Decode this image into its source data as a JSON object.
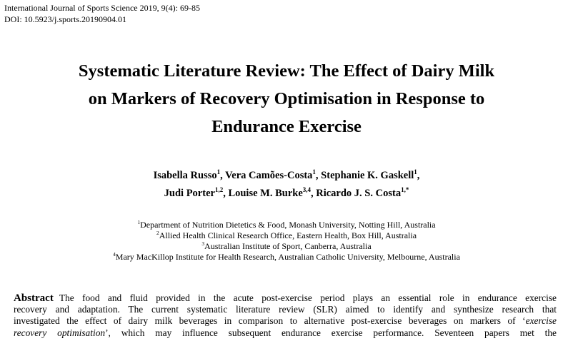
{
  "journal": {
    "citation": "International Journal of Sports Science 2019, 9(4): 69-85",
    "doi": "DOI: 10.5923/j.sports.20190904.01"
  },
  "title": {
    "line1": "Systematic Literature Review: The Effect of Dairy Milk",
    "line2": "on Markers of Recovery Optimisation in Response to",
    "line3": "Endurance Exercise"
  },
  "authors": {
    "a1": {
      "name": "Isabella Russo",
      "sup": "1"
    },
    "a2": {
      "name": "Vera Camões-Costa",
      "sup": "1"
    },
    "a3": {
      "name": "Stephanie K. Gaskell",
      "sup": "1"
    },
    "a4": {
      "name": "Judi Porter",
      "sup": "1,2"
    },
    "a5": {
      "name": "Louise M. Burke",
      "sup": "3,4"
    },
    "a6": {
      "name": "Ricardo J. S. Costa",
      "sup": "1,*"
    },
    "sep": ", "
  },
  "affiliations": [
    {
      "num": "1",
      "text": "Department of Nutrition Dietetics & Food, Monash University, Notting Hill, Australia"
    },
    {
      "num": "2",
      "text": "Allied Health Clinical Research Office, Eastern Health, Box Hill, Australia"
    },
    {
      "num": "3",
      "text": "Australian Institute of Sport, Canberra, Australia"
    },
    {
      "num": "4",
      "text": "Mary MacKillop Institute for Health Research, Australian Catholic University, Melbourne, Australia"
    }
  ],
  "abstract": {
    "heading": "Abstract",
    "l1": "The food and fluid provided in the acute post-exercise period plays an essential role in endurance exercise",
    "l2": "recovery and adaptation. The current systematic literature review (SLR) aimed to identify and synthesize research that",
    "l3a": "investigated the effect of dairy milk beverages in comparison to alternative post-exercise beverages on markers of ‘",
    "l3em": "exercise",
    "l4em": "recovery optimisation",
    "l4b": "’, which may influence subsequent endurance exercise performance. Seventeen papers met the"
  }
}
